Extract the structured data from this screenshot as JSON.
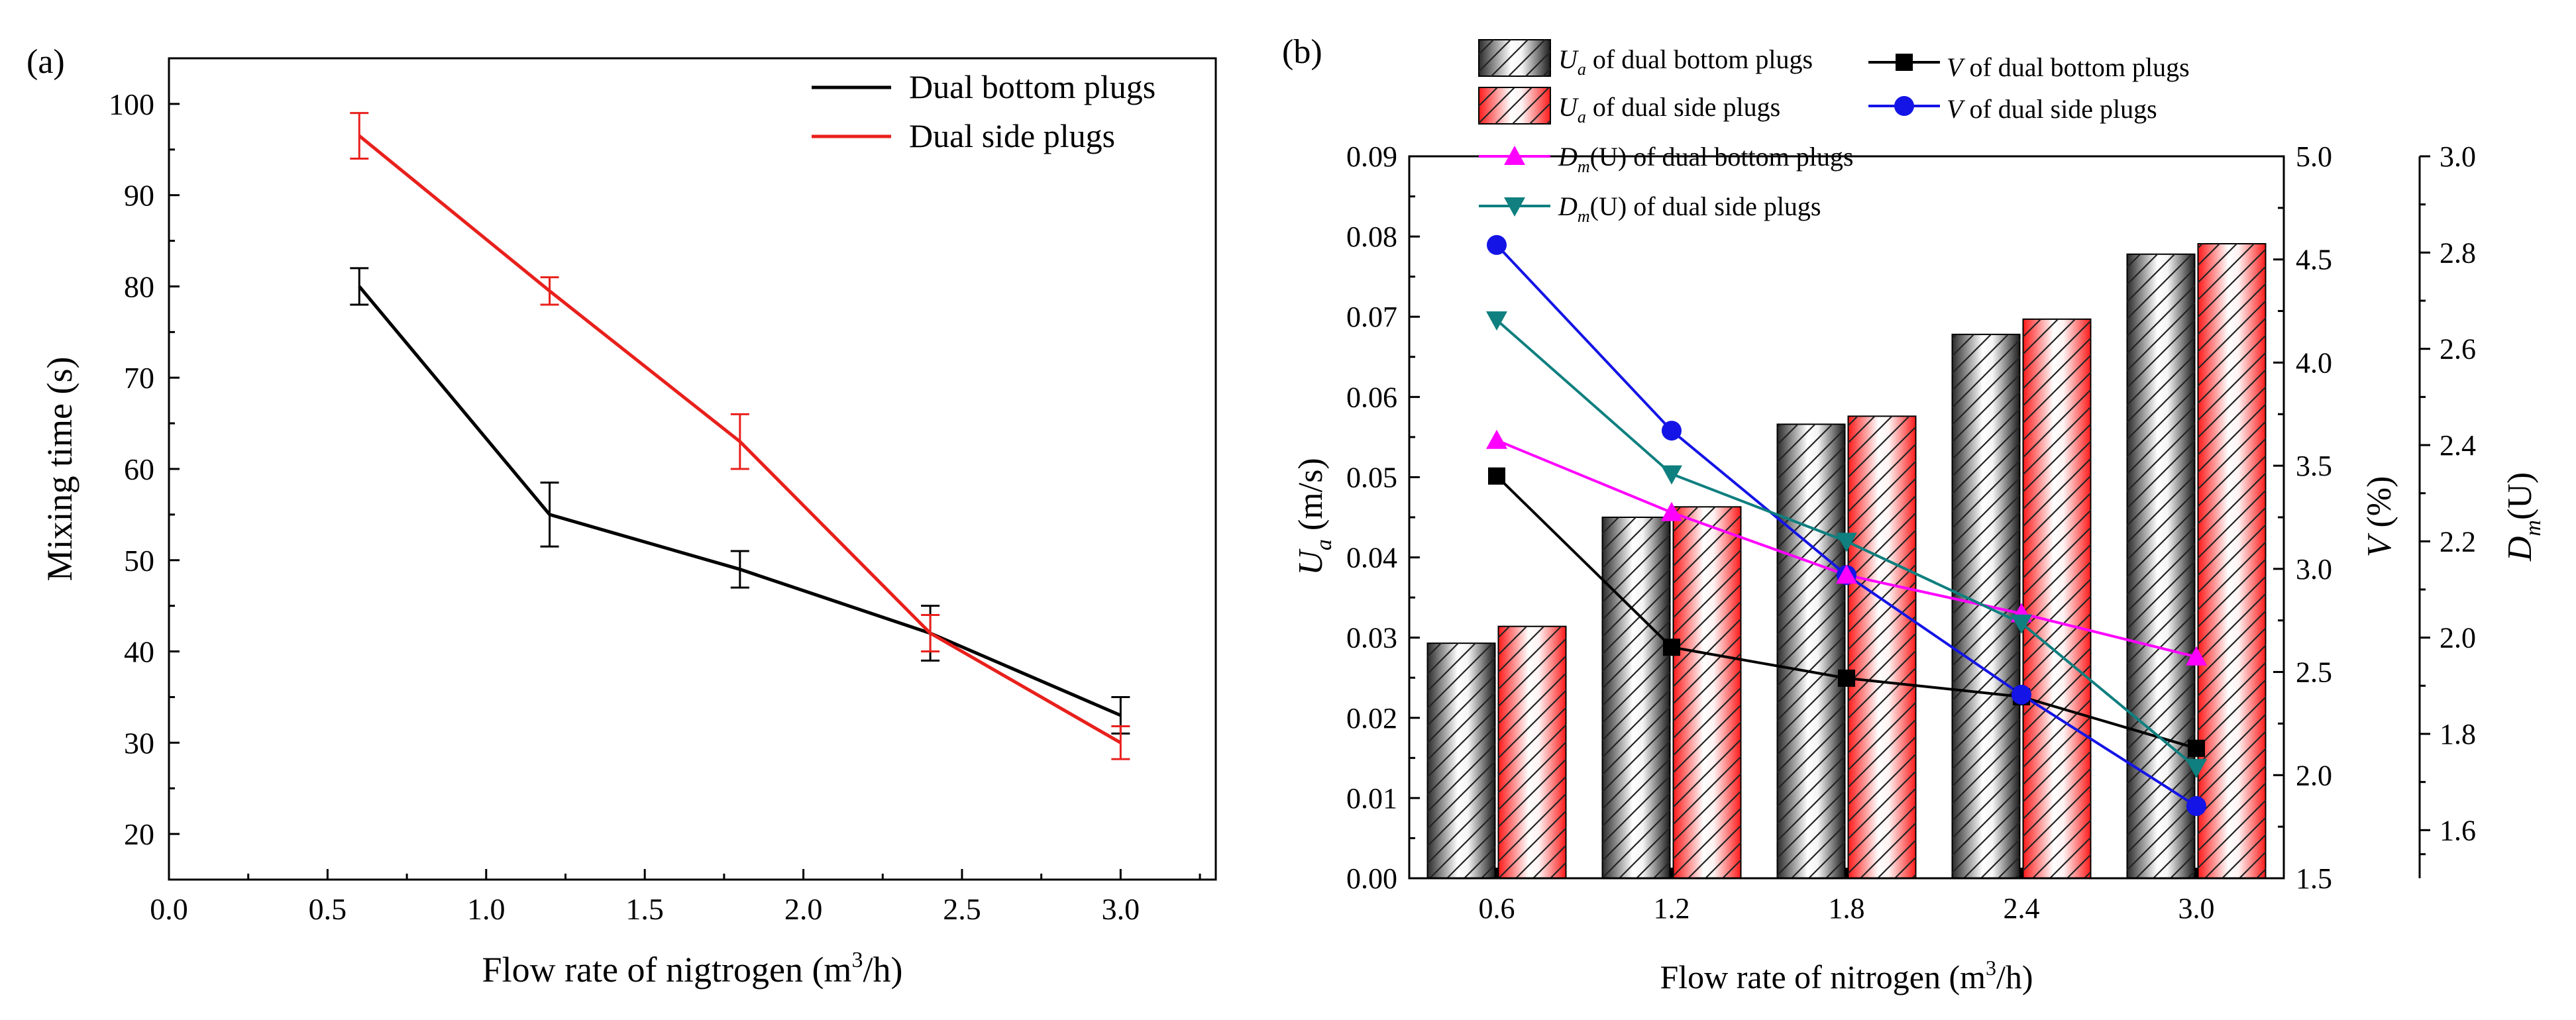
{
  "chart_data": [
    {
      "type": "line",
      "panel_label": "(a)",
      "xlabel": "Flow rate of nigtrogen (m",
      "xlabel_sup": "3",
      "xlabel_tail": "/h)",
      "ylabel": "Mixing time (s)",
      "xlim": [
        0.0,
        3.3
      ],
      "ylim": [
        15,
        105
      ],
      "x_ticks": [
        0.0,
        0.5,
        1.0,
        1.5,
        2.0,
        2.5,
        3.0
      ],
      "y_ticks": [
        20,
        30,
        40,
        50,
        60,
        70,
        80,
        90,
        100
      ],
      "grid": false,
      "legend_position": "top-right",
      "x": [
        0.6,
        1.2,
        1.8,
        2.4,
        3.0
      ],
      "series": [
        {
          "name": "Dual bottom plugs",
          "color": "#000000",
          "values": [
            80,
            55,
            49,
            42,
            33
          ],
          "errors": [
            2.0,
            3.5,
            2.0,
            3.0,
            2.0
          ]
        },
        {
          "name": "Dual side plugs",
          "color": "#e8201c",
          "values": [
            96.5,
            79.5,
            63,
            42,
            30
          ],
          "errors": [
            2.5,
            1.5,
            3.0,
            2.0,
            1.8
          ]
        }
      ]
    },
    {
      "type": "bar",
      "panel_label": "(b)",
      "xlabel": "Flow rate of nitrogen (m",
      "xlabel_sup": "3",
      "xlabel_tail": "/h)",
      "categories": [
        "0.6",
        "1.2",
        "1.8",
        "2.4",
        "3.0"
      ],
      "grid": false,
      "legend_position": "top",
      "axes": {
        "left": {
          "label": "U",
          "label_sub": "a",
          "label_tail": " (m/s)",
          "ylim": [
            0.0,
            0.09
          ],
          "ticks": [
            "0.00",
            "0.01",
            "0.02",
            "0.03",
            "0.04",
            "0.05",
            "0.06",
            "0.07",
            "0.08",
            "0.09"
          ]
        },
        "right1": {
          "label": "V",
          "label_tail": " (%)",
          "ylim": [
            1.5,
            5.0
          ],
          "ticks": [
            "1.5",
            "2.0",
            "2.5",
            "3.0",
            "3.5",
            "4.0",
            "4.5",
            "5.0"
          ]
        },
        "right2": {
          "label": "D",
          "label_sub": "m",
          "label_tail": "(U)",
          "ylim": [
            1.5,
            3.0
          ],
          "ticks": [
            "1.6",
            "1.8",
            "2.0",
            "2.2",
            "2.4",
            "2.6",
            "2.8",
            "3.0"
          ]
        }
      },
      "bar_series": [
        {
          "name": "U",
          "name_sub": "a",
          "name_tail": " of dual bottom plugs",
          "axis": "left",
          "color": "#000000",
          "values": [
            0.0293,
            0.045,
            0.0566,
            0.0678,
            0.0778
          ]
        },
        {
          "name": "U",
          "name_sub": "a",
          "name_tail": " of dual side plugs",
          "axis": "left",
          "color": "#e8201c",
          "values": [
            0.0314,
            0.0463,
            0.0576,
            0.0697,
            0.0791
          ]
        }
      ],
      "line_series": [
        {
          "name": "V",
          "name_tail": " of dual bottom plugs",
          "axis": "right1",
          "color": "#000000",
          "marker": "square",
          "values": [
            3.45,
            2.62,
            2.47,
            2.38,
            2.13
          ]
        },
        {
          "name": "V",
          "name_tail": " of dual side plugs",
          "axis": "right1",
          "color": "#1414e6",
          "marker": "circle",
          "values": [
            4.57,
            3.67,
            2.97,
            2.39,
            1.85
          ]
        },
        {
          "name": "D",
          "name_sub": "m",
          "name_tail": "(U) of dual bottom plugs",
          "axis": "right2",
          "color": "#ff00ff",
          "marker": "triangle-up",
          "values": [
            2.41,
            2.26,
            2.13,
            2.05,
            1.96
          ]
        },
        {
          "name": "D",
          "name_sub": "m",
          "name_tail": "(U) of dual side plugs",
          "axis": "right2",
          "color": "#0f7f7f",
          "marker": "triangle-down",
          "values": [
            2.66,
            2.34,
            2.2,
            2.03,
            1.73
          ]
        }
      ]
    }
  ]
}
